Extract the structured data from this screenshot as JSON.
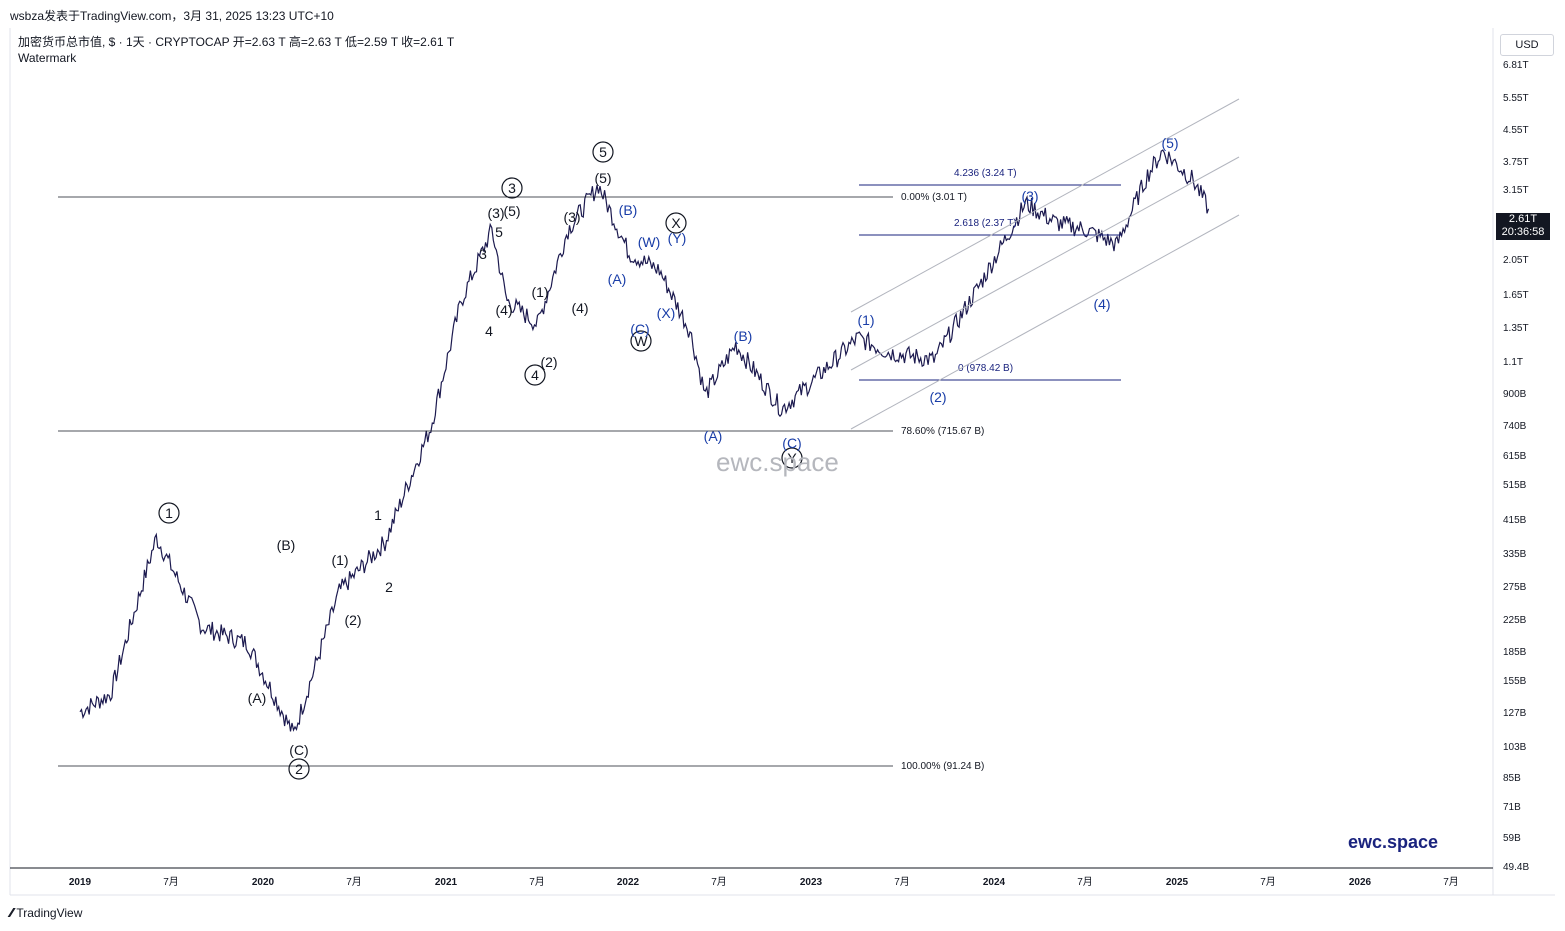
{
  "header": {
    "publish_line": "wsbza发表于TradingView.com，3月 31, 2025 13:23 UTC+10",
    "symbol_line": "加密货币总市值, $ · 1天 · CRYPTOCAP  开=2.63 T  高=2.63 T  低=2.59 T  收=2.61 T",
    "watermark_label": "Watermark"
  },
  "price_axis": {
    "currency": "USD",
    "labels": [
      "6.81T",
      "5.55T",
      "4.55T",
      "3.75T",
      "3.15T",
      "2.05T",
      "1.65T",
      "1.35T",
      "1.1T",
      "900B",
      "740B",
      "615B",
      "515B",
      "415B",
      "335B",
      "275B",
      "225B",
      "185B",
      "155B",
      "127B",
      "103B",
      "85B",
      "71B",
      "59B",
      "49.4B"
    ],
    "last_price": "2.61T",
    "countdown": "20:36:58"
  },
  "time_axis": {
    "labels": [
      "2019",
      "7月",
      "2020",
      "7月",
      "2021",
      "7月",
      "2022",
      "7月",
      "2023",
      "7月",
      "2024",
      "7月",
      "2025",
      "7月",
      "2026",
      "7月"
    ]
  },
  "fib_levels": {
    "top": "0.00% (3.01 T)",
    "mid": "78.60% (715.67 B)",
    "bottom": "100.00% (91.24 B)"
  },
  "blue_fib": {
    "ext1": "4.236 (3.24 T)",
    "ext2": "2.618 (2.37 T)",
    "base": "0 (978.42 B)"
  },
  "watermark_text": "ewc.space",
  "brand_text": "ewc.space",
  "footer": {
    "brand": "TradingView"
  },
  "chart_data": {
    "type": "line",
    "title": "加密货币总市值",
    "x": [
      "2019-01",
      "2019-03",
      "2019-06",
      "2019-09",
      "2019-12",
      "2020-03",
      "2020-06",
      "2020-09",
      "2020-12",
      "2021-02",
      "2021-04",
      "2021-05",
      "2021-07",
      "2021-09",
      "2021-11",
      "2022-01",
      "2022-03",
      "2022-05",
      "2022-06",
      "2022-08",
      "2022-11",
      "2023-01",
      "2023-04",
      "2023-06",
      "2023-09",
      "2023-12",
      "2024-03",
      "2024-05",
      "2024-07",
      "2024-09",
      "2024-11",
      "2024-12",
      "2025-02",
      "2025-03"
    ],
    "values": [
      126,
      140,
      360,
      210,
      190,
      110,
      260,
      350,
      700,
      1500,
      2300,
      1500,
      1300,
      2300,
      3010,
      2000,
      1800,
      1250,
      850,
      1150,
      780,
      920,
      1200,
      1100,
      1050,
      1650,
      2700,
      2400,
      2300,
      2100,
      3200,
      3700,
      3100,
      2610
    ],
    "ylim": [
      49,
      7000
    ],
    "y_scale": "log",
    "labels_black": [
      {
        "x": "2019-06",
        "text": "1",
        "circled": true
      },
      {
        "x": "2020-03",
        "text": "2",
        "circled": true
      },
      {
        "x": "2020-03",
        "text": "(B)"
      },
      {
        "x": "2020-01",
        "text": "(A)"
      },
      {
        "x": "2020-03",
        "text": "(C)"
      },
      {
        "x": "2020-06",
        "text": "(1)"
      },
      {
        "x": "2020-08",
        "text": "(2)"
      },
      {
        "x": "2020-09",
        "text": "1"
      },
      {
        "x": "2020-10",
        "text": "2"
      },
      {
        "x": "2021-02",
        "text": "3"
      },
      {
        "x": "2021-03",
        "text": "4"
      },
      {
        "x": "2021-04",
        "text": "5"
      },
      {
        "x": "2021-04",
        "text": "(3)"
      },
      {
        "x": "2021-04",
        "text": "(4)"
      },
      {
        "x": "2021-05",
        "text": "(5)"
      },
      {
        "x": "2021-05",
        "text": "3",
        "circled": true
      },
      {
        "x": "2021-07",
        "text": "(1)"
      },
      {
        "x": "2021-07",
        "text": "(2)"
      },
      {
        "x": "2021-07",
        "text": "4",
        "circled": true
      },
      {
        "x": "2021-09",
        "text": "(3)"
      },
      {
        "x": "2021-09",
        "text": "(4)"
      },
      {
        "x": "2021-11",
        "text": "(5)"
      },
      {
        "x": "2021-11",
        "text": "5",
        "circled": true
      },
      {
        "x": "2022-03",
        "text": "X",
        "circled": true
      },
      {
        "x": "2022-01",
        "text": "W",
        "circled": true
      },
      {
        "x": "2022-11",
        "text": "Y",
        "circled": true
      }
    ],
    "labels_blue": [
      {
        "text": "(B)"
      },
      {
        "text": "(A)"
      },
      {
        "text": "(W)"
      },
      {
        "text": "(Y)"
      },
      {
        "text": "(X)"
      },
      {
        "text": "(C)"
      },
      {
        "text": "(B)"
      },
      {
        "text": "(A)"
      },
      {
        "text": "(C)"
      },
      {
        "text": "(1)"
      },
      {
        "text": "(2)"
      },
      {
        "text": "(3)"
      },
      {
        "text": "(4)"
      },
      {
        "text": "(5)"
      }
    ]
  }
}
